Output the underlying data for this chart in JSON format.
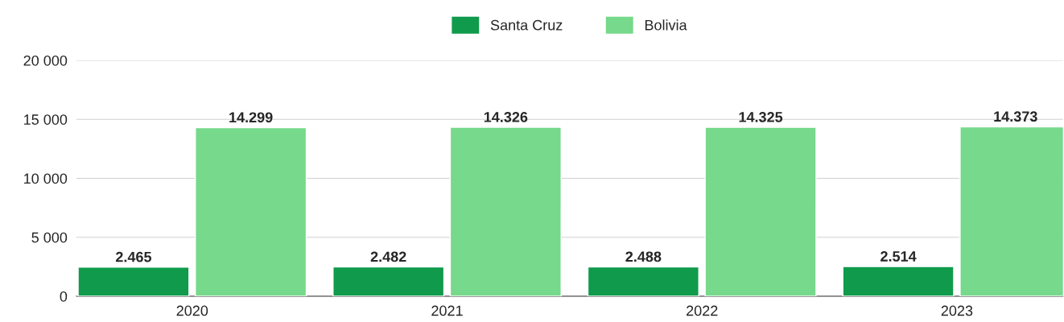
{
  "chart_data": {
    "type": "bar",
    "categories": [
      "2020",
      "2021",
      "2022",
      "2023"
    ],
    "series": [
      {
        "name": "Santa Cruz",
        "color": "#0f9b4b",
        "values": [
          2465,
          2482,
          2488,
          2514
        ],
        "value_labels": [
          "2.465",
          "2.482",
          "2.488",
          "2.514"
        ]
      },
      {
        "name": "Bolivia",
        "color": "#77d98b",
        "values": [
          14299,
          14326,
          14325,
          14373
        ],
        "value_labels": [
          "14.299",
          "14.326",
          "14.325",
          "14.373"
        ]
      }
    ],
    "ylim": [
      0,
      20000
    ],
    "yticks": [
      0,
      {
        "value": 5000,
        "label": "5 000"
      },
      {
        "value": 10000,
        "label": "10 000"
      },
      {
        "value": 15000,
        "label": "15 000"
      },
      {
        "value": 20000,
        "label": "20 000"
      }
    ],
    "grid": "y",
    "legend": "top"
  }
}
